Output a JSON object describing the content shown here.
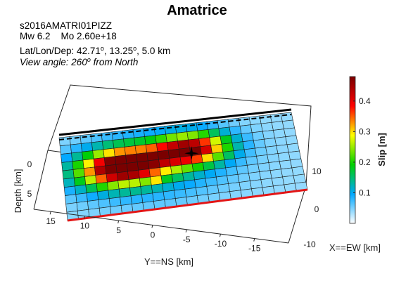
{
  "title": "Amatrice",
  "info": {
    "event_id": "s2016AMATRI01PIZZ",
    "mw_label": "Mw 6.2",
    "mo_label": "Mo 2.60e+18",
    "loc_prefix": "Lat/Lon/Dep: 42.71",
    "loc_mid": ", 13.25",
    "loc_suffix": ", 5.0 km",
    "view_prefix": "View angle: 260",
    "view_suffix": " from North",
    "degree_mark": "o"
  },
  "chart_data": {
    "type": "heatmap",
    "description": "3D perspective view of fault slip distribution on subfault grid",
    "grid": {
      "rows": 10,
      "cols": 22,
      "fill_row": 6,
      "fill_col": 8
    },
    "slip_blobs": [
      {
        "row": 4.3,
        "col": 5.5,
        "row_sigma": 1.5,
        "col_sigma": 2.7,
        "amp": 0.46
      },
      {
        "row": 3.2,
        "col": 12.0,
        "row_sigma": 1.3,
        "col_sigma": 2.4,
        "amp": 0.4
      },
      {
        "row": 4.8,
        "col": 8.5,
        "row_sigma": 2.6,
        "col_sigma": 4.6,
        "amp": 0.1
      }
    ],
    "slip_background": 0.04,
    "hypocenter": {
      "row": 3.7,
      "col": 12.1
    },
    "xlabel": "X==EW [km]",
    "ylabel": "Y==NS [km]",
    "zlabel": "Depth [km]",
    "y_ticks": [
      "15",
      "10",
      "5",
      "0",
      "-5",
      "-10",
      "-15"
    ],
    "x_ticks": [
      "10",
      "0",
      "-10"
    ],
    "z_ticks": [
      "0",
      "5"
    ],
    "colorbar": {
      "label": "Slip [m]",
      "ticks": [
        "0.1",
        "0.2",
        "0.3",
        "0.4"
      ],
      "range": [
        0,
        0.48
      ],
      "colormap": [
        "#ffffff",
        "#00a8ff",
        "#00d000",
        "#ffff00",
        "#ff0000",
        "#7a0000"
      ]
    }
  }
}
